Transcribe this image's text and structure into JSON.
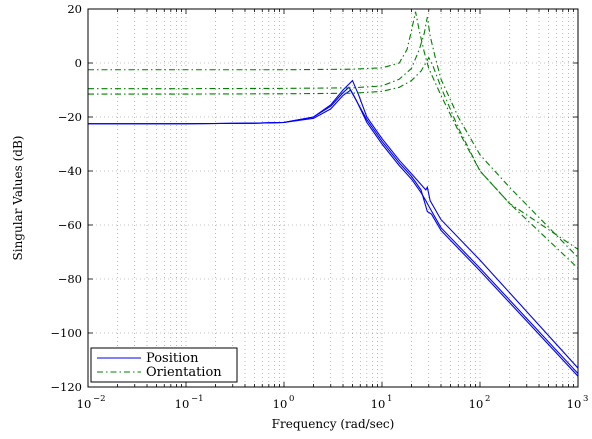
{
  "chart_data": {
    "type": "line",
    "title": "",
    "xlabel": "Frequency (rad/sec)",
    "ylabel": "Singular Values (dB)",
    "xscale": "log",
    "xlim": [
      0.01,
      1000
    ],
    "ylim": [
      -120,
      20
    ],
    "grid": true,
    "legend_position": "bottom-left",
    "x_ticks": [
      {
        "value": 0.01,
        "base": "10",
        "exp": "−2"
      },
      {
        "value": 0.1,
        "base": "10",
        "exp": "−1"
      },
      {
        "value": 1,
        "base": "10",
        "exp": "0"
      },
      {
        "value": 10,
        "base": "10",
        "exp": "1"
      },
      {
        "value": 100,
        "base": "10",
        "exp": "2"
      },
      {
        "value": 1000,
        "base": "10",
        "exp": "3"
      }
    ],
    "y_ticks": [
      {
        "value": 20,
        "label": "20"
      },
      {
        "value": 0,
        "label": "0"
      },
      {
        "value": -20,
        "label": "−20"
      },
      {
        "value": -40,
        "label": "−40"
      },
      {
        "value": -60,
        "label": "−60"
      },
      {
        "value": -80,
        "label": "−80"
      },
      {
        "value": -100,
        "label": "−100"
      },
      {
        "value": -120,
        "label": "−120"
      }
    ],
    "legend": [
      {
        "label": "Position",
        "color": "#0000ff",
        "style": "solid"
      },
      {
        "label": "Orientation",
        "color": "#008000",
        "style": "dashdot"
      }
    ],
    "series": [
      {
        "group": "Position",
        "color": "#0000ff",
        "style": "solid",
        "points": [
          [
            0.01,
            -22.5
          ],
          [
            0.1,
            -22.5
          ],
          [
            0.5,
            -22.3
          ],
          [
            1,
            -22
          ],
          [
            2,
            -20.5
          ],
          [
            3,
            -17
          ],
          [
            4,
            -12
          ],
          [
            4.8,
            -10
          ],
          [
            5.5,
            -14
          ],
          [
            7,
            -22
          ],
          [
            10,
            -30
          ],
          [
            15,
            -38
          ],
          [
            20,
            -43
          ],
          [
            25,
            -48
          ],
          [
            28,
            -51
          ],
          [
            30,
            -53
          ],
          [
            40,
            -61
          ],
          [
            100,
            -76
          ],
          [
            1000,
            -115
          ]
        ]
      },
      {
        "group": "Position",
        "color": "#0000ff",
        "style": "solid",
        "points": [
          [
            0.01,
            -22.5
          ],
          [
            0.1,
            -22.5
          ],
          [
            0.5,
            -22.3
          ],
          [
            1,
            -22
          ],
          [
            2,
            -20
          ],
          [
            3,
            -16
          ],
          [
            4,
            -11
          ],
          [
            4.6,
            -9
          ],
          [
            5.3,
            -13
          ],
          [
            7,
            -21
          ],
          [
            10,
            -29
          ],
          [
            15,
            -37
          ],
          [
            20,
            -42
          ],
          [
            25,
            -47
          ],
          [
            29,
            -55
          ],
          [
            32,
            -56
          ],
          [
            40,
            -62
          ],
          [
            100,
            -77
          ],
          [
            1000,
            -116
          ]
        ]
      },
      {
        "group": "Position",
        "color": "#0000ff",
        "style": "solid",
        "points": [
          [
            0.01,
            -22.5
          ],
          [
            0.1,
            -22.5
          ],
          [
            0.5,
            -22.3
          ],
          [
            1,
            -22
          ],
          [
            2,
            -20
          ],
          [
            3,
            -15.5
          ],
          [
            4,
            -10
          ],
          [
            5,
            -6.5
          ],
          [
            5.8,
            -12
          ],
          [
            7,
            -20
          ],
          [
            10,
            -28
          ],
          [
            15,
            -36
          ],
          [
            20,
            -41
          ],
          [
            25,
            -45
          ],
          [
            28,
            -47
          ],
          [
            29,
            -46
          ],
          [
            31,
            -51
          ],
          [
            40,
            -58
          ],
          [
            100,
            -73
          ],
          [
            1000,
            -113
          ]
        ]
      },
      {
        "group": "Orientation",
        "color": "#008000",
        "style": "dashdot",
        "points": [
          [
            0.01,
            -2.5
          ],
          [
            0.1,
            -2.5
          ],
          [
            1,
            -2.5
          ],
          [
            5,
            -2.3
          ],
          [
            10,
            -1.8
          ],
          [
            15,
            0
          ],
          [
            18,
            5
          ],
          [
            20,
            12
          ],
          [
            22,
            19
          ],
          [
            24,
            12
          ],
          [
            27,
            4
          ],
          [
            30,
            -2
          ],
          [
            40,
            -12
          ],
          [
            60,
            -25
          ],
          [
            100,
            -40
          ],
          [
            200,
            -52
          ],
          [
            1000,
            -69
          ]
        ]
      },
      {
        "group": "Orientation",
        "color": "#008000",
        "style": "dashdot",
        "points": [
          [
            0.01,
            -9.5
          ],
          [
            0.1,
            -9.5
          ],
          [
            1,
            -9.4
          ],
          [
            5,
            -9.2
          ],
          [
            10,
            -8.5
          ],
          [
            15,
            -6
          ],
          [
            20,
            -2
          ],
          [
            24,
            5
          ],
          [
            27,
            11
          ],
          [
            29,
            17
          ],
          [
            31,
            10
          ],
          [
            35,
            2
          ],
          [
            40,
            -6
          ],
          [
            60,
            -20
          ],
          [
            100,
            -34
          ],
          [
            200,
            -46
          ],
          [
            1000,
            -72
          ]
        ]
      },
      {
        "group": "Orientation",
        "color": "#008000",
        "style": "dashdot",
        "points": [
          [
            0.01,
            -11.5
          ],
          [
            0.1,
            -11.5
          ],
          [
            1,
            -11.4
          ],
          [
            5,
            -11.2
          ],
          [
            10,
            -10.5
          ],
          [
            15,
            -9
          ],
          [
            20,
            -6.5
          ],
          [
            25,
            -3
          ],
          [
            28,
            0
          ],
          [
            30,
            2
          ],
          [
            33,
            -1
          ],
          [
            40,
            -9
          ],
          [
            60,
            -24
          ],
          [
            100,
            -40
          ],
          [
            200,
            -52
          ],
          [
            1000,
            -76
          ]
        ]
      }
    ]
  }
}
